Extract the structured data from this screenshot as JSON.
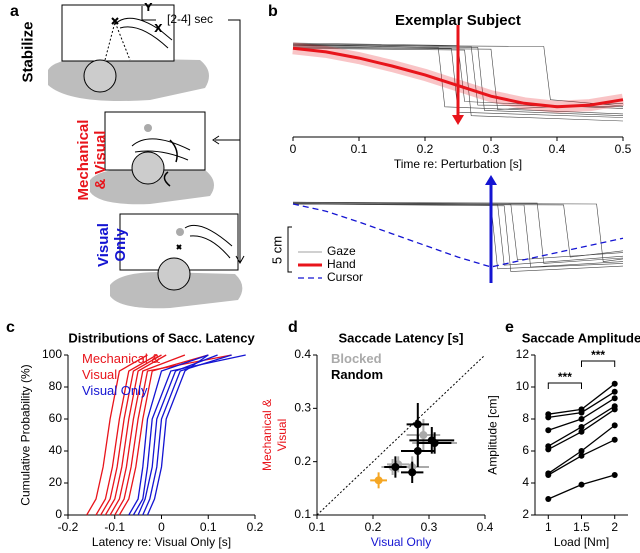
{
  "panel_labels": [
    "a",
    "b",
    "c",
    "d",
    "e"
  ],
  "diagram": {
    "axis_y": "Y",
    "axis_x": "X",
    "delay": "[2-4] sec",
    "conditions": [
      {
        "label": "Stabilize",
        "color": "#000000"
      },
      {
        "label": "Mechanical & Visual",
        "color": "#e8141b"
      },
      {
        "label": "Visual Only",
        "color": "#1414d2"
      }
    ]
  },
  "chart_data": [
    {
      "type": "line",
      "title": "Exemplar Subject",
      "xlabel": "Time re: Perturbation [s]",
      "xlim": [
        0,
        0.5
      ],
      "xticks": [
        0,
        0.1,
        0.2,
        0.3,
        0.4,
        0.5
      ],
      "ylim": [
        -10,
        1.5
      ],
      "series": [
        {
          "name": "Gaze",
          "color": "#444444",
          "style": "thin",
          "traces": [
            {
              "x": [
                0,
                0.22,
                0.23,
                0.5
              ],
              "values": [
                0.4,
                0.1,
                -6.6,
                -7.4
              ]
            },
            {
              "x": [
                0,
                0.24,
                0.25,
                0.5
              ],
              "values": [
                0.2,
                0,
                -7.2,
                -7.8
              ]
            },
            {
              "x": [
                0,
                0.25,
                0.26,
                0.5
              ],
              "values": [
                0.6,
                0.3,
                -6,
                -6.8
              ]
            },
            {
              "x": [
                0,
                0.26,
                0.27,
                0.5
              ],
              "values": [
                0,
                -0.2,
                -7.6,
                -8.2
              ]
            },
            {
              "x": [
                0,
                0.27,
                0.28,
                0.5
              ],
              "values": [
                0.5,
                0.2,
                -6.4,
                -6.6
              ]
            },
            {
              "x": [
                0,
                0.28,
                0.29,
                0.5
              ],
              "values": [
                0.3,
                0.1,
                -7,
                -7.6
              ]
            },
            {
              "x": [
                0,
                0.3,
                0.31,
                0.5
              ],
              "values": [
                0.1,
                -0.1,
                -6.9,
                -6.2
              ]
            },
            {
              "x": [
                0,
                0.38,
                0.39,
                0.5
              ],
              "values": [
                0.4,
                0.2,
                -5.8,
                -6.5
              ]
            }
          ]
        },
        {
          "name": "Hand",
          "color": "#e8141b",
          "style": "thick",
          "x": [
            0,
            0.05,
            0.1,
            0.15,
            0.2,
            0.25,
            0.3,
            0.35,
            0.4,
            0.45,
            0.5
          ],
          "values": [
            0,
            -0.4,
            -1.1,
            -2,
            -3,
            -4.2,
            -5.4,
            -6.2,
            -6.6,
            -6.4,
            -5.8
          ]
        }
      ],
      "events": [
        {
          "x": 0.25,
          "color": "#e8141b",
          "direction": "down"
        }
      ]
    },
    {
      "type": "line",
      "xlim": [
        0,
        0.5
      ],
      "ylim": [
        -9,
        1
      ],
      "series": [
        {
          "color": "#444444",
          "style": "thin",
          "traces": [
            {
              "x": [
                0,
                0.3,
                0.31,
                0.5
              ],
              "values": [
                0,
                -0.1,
                -7.2,
                -6.6
              ]
            },
            {
              "x": [
                0,
                0.31,
                0.32,
                0.5
              ],
              "values": [
                0.2,
                0,
                -6.8,
                -5.8
              ]
            },
            {
              "x": [
                0,
                0.32,
                0.33,
                0.5
              ],
              "values": [
                0,
                -0.2,
                -7.5,
                -6.9
              ]
            },
            {
              "x": [
                0,
                0.33,
                0.34,
                0.5
              ],
              "values": [
                0.1,
                0,
                -6.2,
                -5.4
              ]
            },
            {
              "x": [
                0,
                0.35,
                0.36,
                0.5
              ],
              "values": [
                0,
                -0.1,
                -7,
                -6.4
              ]
            },
            {
              "x": [
                0,
                0.37,
                0.38,
                0.5
              ],
              "values": [
                0.2,
                0.1,
                -6.6,
                -6
              ]
            },
            {
              "x": [
                0,
                0.41,
                0.42,
                0.5
              ],
              "values": [
                0,
                -0.1,
                -5.9,
                -5.2
              ]
            },
            {
              "x": [
                0,
                0.46,
                0.47,
                0.5
              ],
              "values": [
                0.1,
                0,
                -6.4,
                -6.1
              ]
            }
          ]
        },
        {
          "name": "Cursor",
          "color": "#1414d2",
          "style": "dashed",
          "x": [
            0,
            0.05,
            0.1,
            0.15,
            0.2,
            0.25,
            0.3,
            0.35,
            0.4,
            0.45,
            0.5
          ],
          "values": [
            0,
            -0.8,
            -2,
            -3.3,
            -4.6,
            -5.9,
            -7,
            -6.2,
            -5.4,
            -4.6,
            -3.8
          ]
        }
      ],
      "events": [
        {
          "x": 0.3,
          "color": "#1414d2",
          "direction": "up"
        }
      ],
      "scale_bar": {
        "value": 5,
        "label": "5 cm"
      }
    },
    {
      "type": "line",
      "title": "Distributions of Sacc. Latency",
      "xlabel": "Latency re: Visual Only [s]",
      "ylabel": "Cumulative Probability (%)",
      "xlim": [
        -0.2,
        0.2
      ],
      "xticks": [
        -0.2,
        -0.1,
        0,
        0.1,
        0.2
      ],
      "ylim": [
        0,
        100
      ],
      "yticks": [
        0,
        20,
        40,
        60,
        80,
        100
      ],
      "series": [
        {
          "name": "Mechanical & Visual",
          "color": "#e8141b",
          "traces": [
            {
              "x": [
                -0.16,
                -0.14,
                -0.125,
                -0.11,
                -0.09,
                -0.03
              ],
              "values": [
                0,
                10,
                30,
                60,
                90,
                100
              ]
            },
            {
              "x": [
                -0.14,
                -0.12,
                -0.105,
                -0.09,
                -0.07,
                -0.01
              ],
              "values": [
                0,
                10,
                30,
                60,
                90,
                100
              ]
            },
            {
              "x": [
                -0.13,
                -0.11,
                -0.095,
                -0.08,
                -0.06,
                0
              ],
              "values": [
                0,
                10,
                30,
                60,
                90,
                100
              ]
            },
            {
              "x": [
                -0.12,
                -0.1,
                -0.085,
                -0.07,
                -0.05,
                0.01
              ],
              "values": [
                0,
                10,
                30,
                60,
                90,
                100
              ]
            },
            {
              "x": [
                -0.11,
                -0.09,
                -0.075,
                -0.06,
                -0.04,
                0.05
              ],
              "values": [
                0,
                10,
                30,
                60,
                90,
                100
              ]
            },
            {
              "x": [
                -0.1,
                -0.08,
                -0.065,
                -0.05,
                -0.03,
                0.15
              ],
              "values": [
                0,
                10,
                30,
                60,
                90,
                100
              ]
            },
            {
              "x": [
                -0.09,
                -0.07,
                -0.055,
                -0.04,
                -0.02,
                0.1
              ],
              "values": [
                0,
                10,
                30,
                60,
                90,
                100
              ]
            }
          ]
        },
        {
          "name": "Visual Only",
          "color": "#1414d2",
          "traces": [
            {
              "x": [
                -0.07,
                -0.05,
                -0.04,
                -0.03,
                0,
                0.1
              ],
              "values": [
                0,
                10,
                30,
                60,
                90,
                100
              ]
            },
            {
              "x": [
                -0.06,
                -0.04,
                -0.03,
                -0.02,
                0.02,
                0.18
              ],
              "values": [
                0,
                10,
                30,
                60,
                90,
                100
              ]
            },
            {
              "x": [
                -0.05,
                -0.035,
                -0.02,
                -0.01,
                0.03,
                0.12
              ],
              "values": [
                0,
                10,
                30,
                60,
                90,
                100
              ]
            },
            {
              "x": [
                -0.04,
                -0.025,
                -0.01,
                0,
                0.04,
                0.15
              ],
              "values": [
                0,
                10,
                30,
                60,
                90,
                100
              ]
            },
            {
              "x": [
                -0.03,
                -0.015,
                0,
                0.01,
                0.05,
                0.1
              ],
              "values": [
                0,
                10,
                30,
                60,
                90,
                100
              ]
            }
          ]
        }
      ]
    },
    {
      "type": "scatter",
      "title": "Saccade Latency [s]",
      "xlabel": "Visual Only",
      "xlabel_color": "#1414d2",
      "ylabel": "Mechanical & Visual",
      "ylabel_color": "#e8141b",
      "identity_line": true,
      "xlim": [
        0.1,
        0.4
      ],
      "xticks": [
        0.1,
        0.2,
        0.3,
        0.4
      ],
      "ylim": [
        0.1,
        0.4
      ],
      "yticks": [
        0.1,
        0.2,
        0.3,
        0.4
      ],
      "series": [
        {
          "name": "Blocked",
          "color": "#aaaaaa",
          "x": [
            0.245,
            0.29,
            0.31,
            0.27,
            0.235
          ],
          "values": [
            0.195,
            0.25,
            0.235,
            0.19,
            0.19
          ],
          "xerr": [
            0.02,
            0.03,
            0.04,
            0.03,
            0.02
          ],
          "yerr": [
            0.015,
            0.03,
            0.02,
            0.02,
            0.015
          ]
        },
        {
          "name": "Random",
          "color": "#000000",
          "x": [
            0.24,
            0.28,
            0.305,
            0.28,
            0.27,
            0.31
          ],
          "values": [
            0.19,
            0.27,
            0.24,
            0.22,
            0.18,
            0.235
          ],
          "xerr": [
            0.02,
            0.02,
            0.04,
            0.03,
            0.02,
            0.03
          ],
          "yerr": [
            0.02,
            0.04,
            0.025,
            0.03,
            0.02,
            0.02
          ]
        },
        {
          "color": "#f5a623",
          "x": [
            0.21
          ],
          "values": [
            0.165
          ],
          "xerr": [
            0.015
          ],
          "yerr": [
            0.015
          ]
        }
      ]
    },
    {
      "type": "line",
      "title": "Saccade Amplitude",
      "xlabel": "Load [Nm]",
      "ylabel": "Amplitude [cm]",
      "markers": true,
      "x": [
        1,
        1.5,
        2
      ],
      "xlim": [
        0.8,
        2.2
      ],
      "xticks": [
        1,
        1.5,
        2
      ],
      "ylim": [
        2,
        12
      ],
      "yticks": [
        2,
        4,
        6,
        8,
        10,
        12
      ],
      "series": [
        {
          "color": "#000000",
          "values": [
            8.3,
            8.6,
            10.2
          ]
        },
        {
          "color": "#000000",
          "values": [
            8.1,
            8.4,
            9.7
          ]
        },
        {
          "color": "#000000",
          "values": [
            7.3,
            8,
            9.3
          ]
        },
        {
          "color": "#000000",
          "values": [
            6.3,
            7.5,
            8.8
          ]
        },
        {
          "color": "#000000",
          "values": [
            6.1,
            7.2,
            8.6
          ]
        },
        {
          "color": "#000000",
          "values": [
            4.6,
            6,
            7.6
          ]
        },
        {
          "color": "#000000",
          "values": [
            4.5,
            5.7,
            6.7
          ]
        },
        {
          "color": "#000000",
          "values": [
            3,
            3.9,
            4.5
          ]
        }
      ],
      "annotations": [
        {
          "text": "***",
          "x": [
            1,
            1.5
          ]
        },
        {
          "text": "***",
          "x": [
            1.5,
            2
          ]
        }
      ]
    }
  ]
}
